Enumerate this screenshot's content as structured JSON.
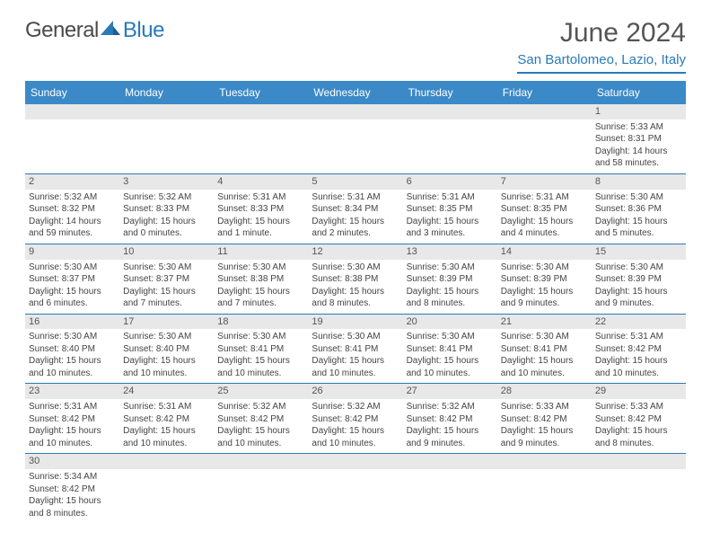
{
  "logo": {
    "text_left": "General",
    "text_right": "Blue",
    "triangle_color": "#2a7ab8"
  },
  "header": {
    "month_title": "June 2024",
    "location": "San Bartolomeo, Lazio, Italy"
  },
  "colors": {
    "header_bg": "#3b89c7",
    "header_text": "#ffffff",
    "accent": "#2a7ab8",
    "daynum_bg": "#e8e8e8",
    "body_text": "#444444"
  },
  "typography": {
    "month_title_fontsize": 30,
    "location_fontsize": 15,
    "dayname_fontsize": 12,
    "daynum_fontsize": 11,
    "cell_fontsize": 10
  },
  "day_names": [
    "Sunday",
    "Monday",
    "Tuesday",
    "Wednesday",
    "Thursday",
    "Friday",
    "Saturday"
  ],
  "weeks": [
    [
      null,
      null,
      null,
      null,
      null,
      null,
      {
        "n": "1",
        "sunrise": "Sunrise: 5:33 AM",
        "sunset": "Sunset: 8:31 PM",
        "daylight": "Daylight: 14 hours and 58 minutes."
      }
    ],
    [
      {
        "n": "2",
        "sunrise": "Sunrise: 5:32 AM",
        "sunset": "Sunset: 8:32 PM",
        "daylight": "Daylight: 14 hours and 59 minutes."
      },
      {
        "n": "3",
        "sunrise": "Sunrise: 5:32 AM",
        "sunset": "Sunset: 8:33 PM",
        "daylight": "Daylight: 15 hours and 0 minutes."
      },
      {
        "n": "4",
        "sunrise": "Sunrise: 5:31 AM",
        "sunset": "Sunset: 8:33 PM",
        "daylight": "Daylight: 15 hours and 1 minute."
      },
      {
        "n": "5",
        "sunrise": "Sunrise: 5:31 AM",
        "sunset": "Sunset: 8:34 PM",
        "daylight": "Daylight: 15 hours and 2 minutes."
      },
      {
        "n": "6",
        "sunrise": "Sunrise: 5:31 AM",
        "sunset": "Sunset: 8:35 PM",
        "daylight": "Daylight: 15 hours and 3 minutes."
      },
      {
        "n": "7",
        "sunrise": "Sunrise: 5:31 AM",
        "sunset": "Sunset: 8:35 PM",
        "daylight": "Daylight: 15 hours and 4 minutes."
      },
      {
        "n": "8",
        "sunrise": "Sunrise: 5:30 AM",
        "sunset": "Sunset: 8:36 PM",
        "daylight": "Daylight: 15 hours and 5 minutes."
      }
    ],
    [
      {
        "n": "9",
        "sunrise": "Sunrise: 5:30 AM",
        "sunset": "Sunset: 8:37 PM",
        "daylight": "Daylight: 15 hours and 6 minutes."
      },
      {
        "n": "10",
        "sunrise": "Sunrise: 5:30 AM",
        "sunset": "Sunset: 8:37 PM",
        "daylight": "Daylight: 15 hours and 7 minutes."
      },
      {
        "n": "11",
        "sunrise": "Sunrise: 5:30 AM",
        "sunset": "Sunset: 8:38 PM",
        "daylight": "Daylight: 15 hours and 7 minutes."
      },
      {
        "n": "12",
        "sunrise": "Sunrise: 5:30 AM",
        "sunset": "Sunset: 8:38 PM",
        "daylight": "Daylight: 15 hours and 8 minutes."
      },
      {
        "n": "13",
        "sunrise": "Sunrise: 5:30 AM",
        "sunset": "Sunset: 8:39 PM",
        "daylight": "Daylight: 15 hours and 8 minutes."
      },
      {
        "n": "14",
        "sunrise": "Sunrise: 5:30 AM",
        "sunset": "Sunset: 8:39 PM",
        "daylight": "Daylight: 15 hours and 9 minutes."
      },
      {
        "n": "15",
        "sunrise": "Sunrise: 5:30 AM",
        "sunset": "Sunset: 8:39 PM",
        "daylight": "Daylight: 15 hours and 9 minutes."
      }
    ],
    [
      {
        "n": "16",
        "sunrise": "Sunrise: 5:30 AM",
        "sunset": "Sunset: 8:40 PM",
        "daylight": "Daylight: 15 hours and 10 minutes."
      },
      {
        "n": "17",
        "sunrise": "Sunrise: 5:30 AM",
        "sunset": "Sunset: 8:40 PM",
        "daylight": "Daylight: 15 hours and 10 minutes."
      },
      {
        "n": "18",
        "sunrise": "Sunrise: 5:30 AM",
        "sunset": "Sunset: 8:41 PM",
        "daylight": "Daylight: 15 hours and 10 minutes."
      },
      {
        "n": "19",
        "sunrise": "Sunrise: 5:30 AM",
        "sunset": "Sunset: 8:41 PM",
        "daylight": "Daylight: 15 hours and 10 minutes."
      },
      {
        "n": "20",
        "sunrise": "Sunrise: 5:30 AM",
        "sunset": "Sunset: 8:41 PM",
        "daylight": "Daylight: 15 hours and 10 minutes."
      },
      {
        "n": "21",
        "sunrise": "Sunrise: 5:30 AM",
        "sunset": "Sunset: 8:41 PM",
        "daylight": "Daylight: 15 hours and 10 minutes."
      },
      {
        "n": "22",
        "sunrise": "Sunrise: 5:31 AM",
        "sunset": "Sunset: 8:42 PM",
        "daylight": "Daylight: 15 hours and 10 minutes."
      }
    ],
    [
      {
        "n": "23",
        "sunrise": "Sunrise: 5:31 AM",
        "sunset": "Sunset: 8:42 PM",
        "daylight": "Daylight: 15 hours and 10 minutes."
      },
      {
        "n": "24",
        "sunrise": "Sunrise: 5:31 AM",
        "sunset": "Sunset: 8:42 PM",
        "daylight": "Daylight: 15 hours and 10 minutes."
      },
      {
        "n": "25",
        "sunrise": "Sunrise: 5:32 AM",
        "sunset": "Sunset: 8:42 PM",
        "daylight": "Daylight: 15 hours and 10 minutes."
      },
      {
        "n": "26",
        "sunrise": "Sunrise: 5:32 AM",
        "sunset": "Sunset: 8:42 PM",
        "daylight": "Daylight: 15 hours and 10 minutes."
      },
      {
        "n": "27",
        "sunrise": "Sunrise: 5:32 AM",
        "sunset": "Sunset: 8:42 PM",
        "daylight": "Daylight: 15 hours and 9 minutes."
      },
      {
        "n": "28",
        "sunrise": "Sunrise: 5:33 AM",
        "sunset": "Sunset: 8:42 PM",
        "daylight": "Daylight: 15 hours and 9 minutes."
      },
      {
        "n": "29",
        "sunrise": "Sunrise: 5:33 AM",
        "sunset": "Sunset: 8:42 PM",
        "daylight": "Daylight: 15 hours and 8 minutes."
      }
    ],
    [
      {
        "n": "30",
        "sunrise": "Sunrise: 5:34 AM",
        "sunset": "Sunset: 8:42 PM",
        "daylight": "Daylight: 15 hours and 8 minutes."
      },
      null,
      null,
      null,
      null,
      null,
      null
    ]
  ]
}
